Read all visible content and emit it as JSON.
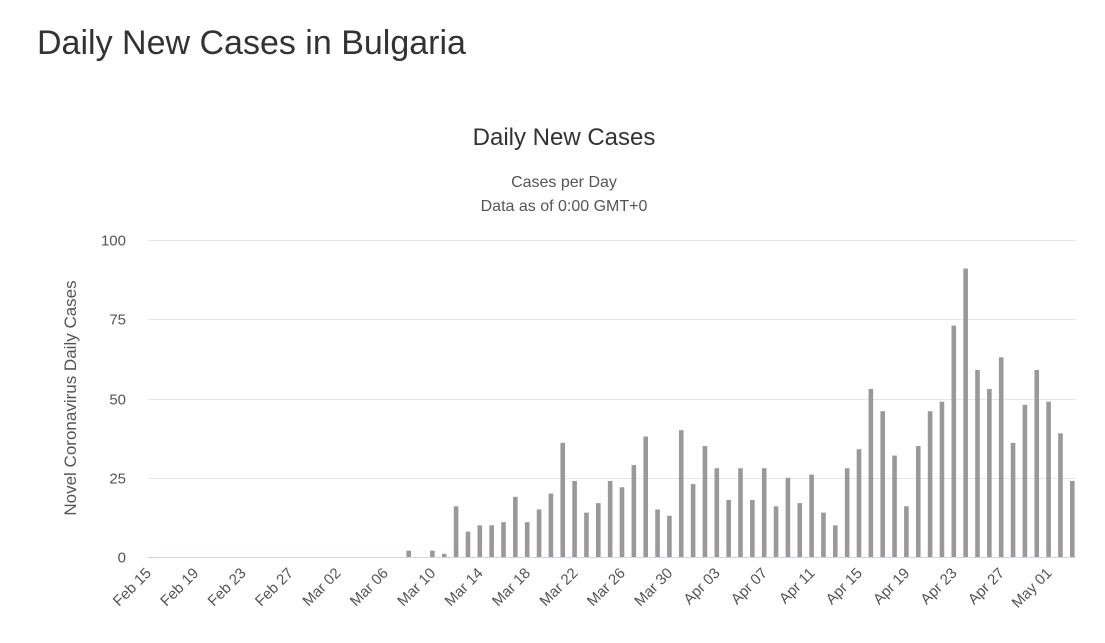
{
  "page": {
    "title": "Daily New Cases in Bulgaria"
  },
  "chart_data": {
    "type": "bar",
    "title": "Daily New Cases",
    "subtitle_lines": [
      "Cases per Day",
      "Data as of 0:00 GMT+0"
    ],
    "ylabel": "Novel Coronavirus Daily Cases",
    "xlabel": "",
    "ylim": [
      0,
      100
    ],
    "yticks": [
      0,
      25,
      50,
      75,
      100
    ],
    "grid": true,
    "legend": "none",
    "bar_color": "#999999",
    "start_date": "Feb 15",
    "tick_labels": [
      "Feb 15",
      "Feb 19",
      "Feb 23",
      "Feb 27",
      "Mar 02",
      "Mar 06",
      "Mar 10",
      "Mar 14",
      "Mar 18",
      "Mar 22",
      "Mar 26",
      "Mar 30",
      "Apr 03",
      "Apr 07",
      "Apr 11",
      "Apr 15",
      "Apr 19",
      "Apr 23",
      "Apr 27",
      "May 01"
    ],
    "categories": [
      "Feb 15",
      "Feb 16",
      "Feb 17",
      "Feb 18",
      "Feb 19",
      "Feb 20",
      "Feb 21",
      "Feb 22",
      "Feb 23",
      "Feb 24",
      "Feb 25",
      "Feb 26",
      "Feb 27",
      "Feb 28",
      "Feb 29",
      "Mar 01",
      "Mar 02",
      "Mar 03",
      "Mar 04",
      "Mar 05",
      "Mar 06",
      "Mar 07",
      "Mar 08",
      "Mar 09",
      "Mar 10",
      "Mar 11",
      "Mar 12",
      "Mar 13",
      "Mar 14",
      "Mar 15",
      "Mar 16",
      "Mar 17",
      "Mar 18",
      "Mar 19",
      "Mar 20",
      "Mar 21",
      "Mar 22",
      "Mar 23",
      "Mar 24",
      "Mar 25",
      "Mar 26",
      "Mar 27",
      "Mar 28",
      "Mar 29",
      "Mar 30",
      "Mar 31",
      "Apr 01",
      "Apr 02",
      "Apr 03",
      "Apr 04",
      "Apr 05",
      "Apr 06",
      "Apr 07",
      "Apr 08",
      "Apr 09",
      "Apr 10",
      "Apr 11",
      "Apr 12",
      "Apr 13",
      "Apr 14",
      "Apr 15",
      "Apr 16",
      "Apr 17",
      "Apr 18",
      "Apr 19",
      "Apr 20",
      "Apr 21",
      "Apr 22",
      "Apr 23",
      "Apr 24",
      "Apr 25",
      "Apr 26",
      "Apr 27",
      "Apr 28",
      "Apr 29",
      "Apr 30",
      "May 01",
      "May 02",
      "May 03"
    ],
    "values": [
      0,
      0,
      0,
      0,
      0,
      0,
      0,
      0,
      0,
      0,
      0,
      0,
      0,
      0,
      0,
      0,
      0,
      0,
      0,
      0,
      0,
      0,
      2,
      0,
      2,
      1,
      16,
      8,
      10,
      10,
      11,
      19,
      11,
      15,
      20,
      36,
      24,
      14,
      17,
      24,
      22,
      29,
      38,
      15,
      13,
      40,
      23,
      35,
      28,
      18,
      28,
      18,
      28,
      16,
      25,
      17,
      26,
      14,
      10,
      28,
      34,
      53,
      46,
      32,
      16,
      35,
      46,
      49,
      73,
      91,
      59,
      53,
      63,
      36,
      48,
      59,
      49,
      39,
      24
    ]
  }
}
